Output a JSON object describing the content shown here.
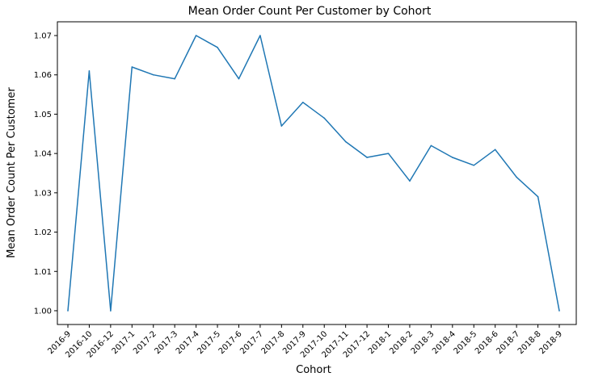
{
  "chart_data": {
    "type": "line",
    "title": "Mean Order Count Per Customer by Cohort",
    "xlabel": "Cohort",
    "ylabel": "Mean Order Count Per Customer",
    "categories": [
      "2016-9",
      "2016-10",
      "2016-12",
      "2017-1",
      "2017-2",
      "2017-3",
      "2017-4",
      "2017-5",
      "2017-6",
      "2017-7",
      "2017-8",
      "2017-9",
      "2017-10",
      "2017-11",
      "2017-12",
      "2018-1",
      "2018-2",
      "2018-3",
      "2018-4",
      "2018-5",
      "2018-6",
      "2018-7",
      "2018-8",
      "2018-9"
    ],
    "series": [
      {
        "values": [
          1.0,
          1.061,
          1.0,
          1.062,
          1.06,
          1.059,
          1.07,
          1.067,
          1.059,
          1.07,
          1.047,
          1.053,
          1.049,
          1.043,
          1.039,
          1.04,
          1.033,
          1.042,
          1.039,
          1.037,
          1.041,
          1.034,
          1.029,
          1.0
        ],
        "color": "#1f77b4"
      }
    ],
    "ylim": [
      0.9965,
      1.0735
    ],
    "yticks": [
      "1.00",
      "1.01",
      "1.02",
      "1.03",
      "1.04",
      "1.05",
      "1.06",
      "1.07"
    ],
    "grid": false,
    "legend": "none"
  }
}
